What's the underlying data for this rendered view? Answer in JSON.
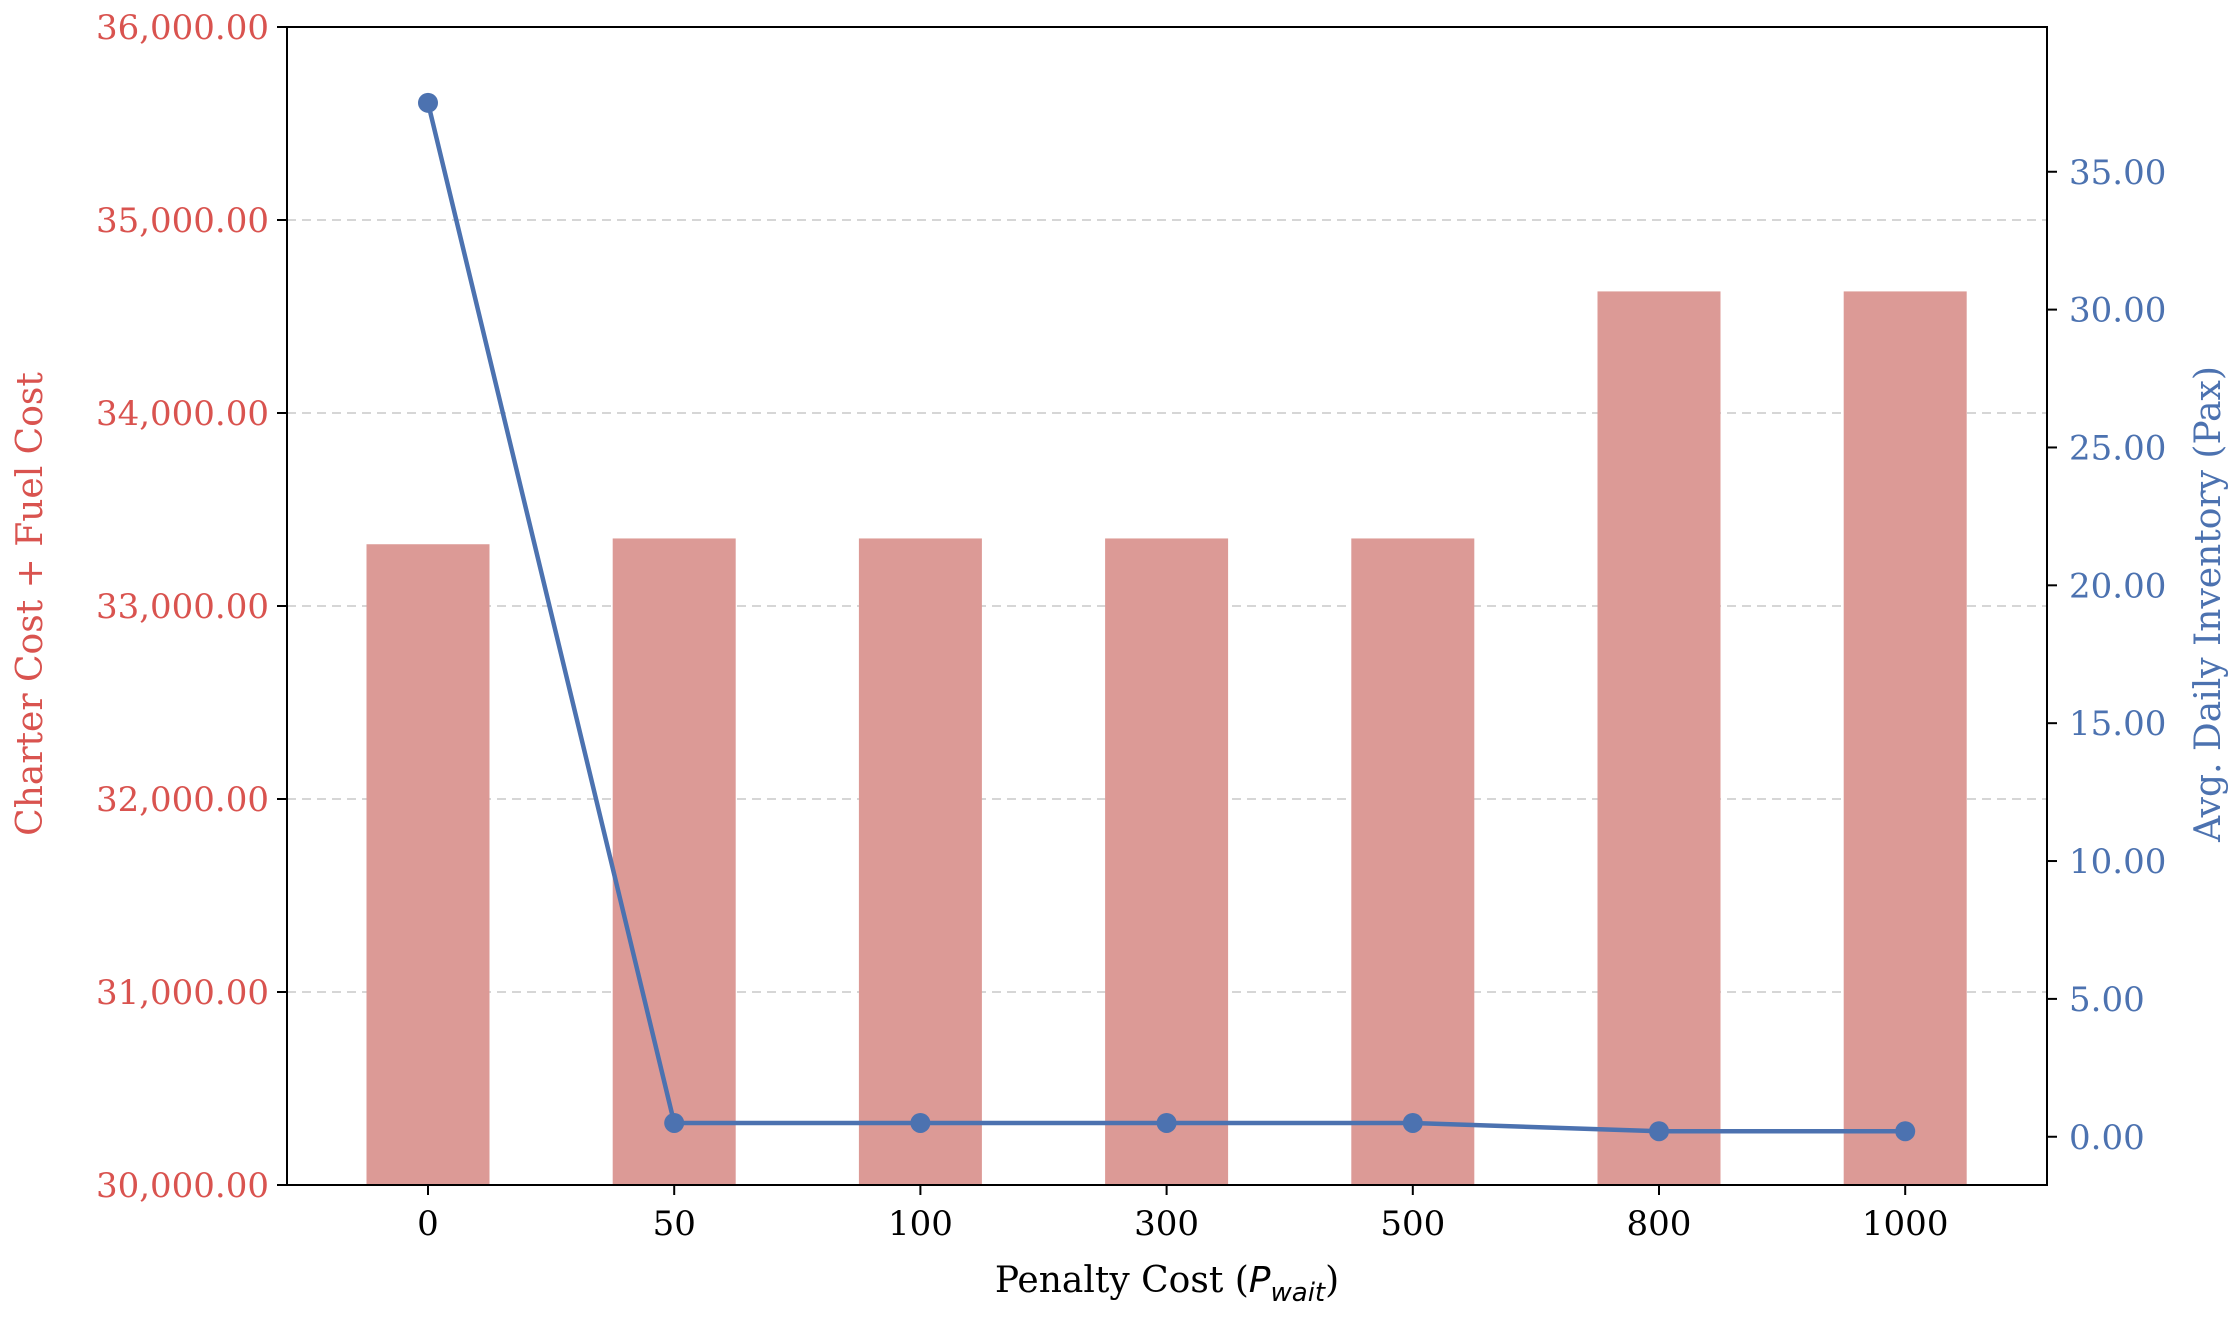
{
  "chart_data": {
    "type": "bar",
    "categories": [
      "0",
      "50",
      "100",
      "300",
      "500",
      "800",
      "1000"
    ],
    "series": [
      {
        "type": "bar",
        "axis": "left",
        "values": [
          33320,
          33350,
          33350,
          33350,
          33350,
          34630,
          34630
        ],
        "color": "#dc9a96"
      },
      {
        "type": "line",
        "axis": "right",
        "values": [
          37.5,
          0.5,
          0.5,
          0.5,
          0.5,
          0.2,
          0.2
        ],
        "color": "#4c72b0"
      }
    ],
    "xlabel_main": "Penalty Cost (",
    "xlabel_symbol": "P",
    "xlabel_subscript": "wait",
    "xlabel_close": ")",
    "ylabel_left": "Charter Cost + Fuel Cost",
    "ylabel_right": "Avg. Daily Inventory (Pax)",
    "ylim_left": [
      30000,
      36000
    ],
    "ylim_right": [
      -1.75,
      40.25
    ],
    "yticks_left": [
      30000,
      31000,
      32000,
      33000,
      34000,
      35000,
      36000
    ],
    "yticks_left_labels": [
      "30,000.00",
      "31,000.00",
      "32,000.00",
      "33,000.00",
      "34,000.00",
      "35,000.00",
      "36,000.00"
    ],
    "yticks_right": [
      0,
      5,
      10,
      15,
      20,
      25,
      30,
      35
    ],
    "yticks_right_labels": [
      "0.00",
      "5.00",
      "10.00",
      "15.00",
      "20.00",
      "25.00",
      "30.00",
      "35.00"
    ],
    "grid": "horizontal dashed",
    "left_axis_color": "#d9534f",
    "right_axis_color": "#4c72b0"
  }
}
